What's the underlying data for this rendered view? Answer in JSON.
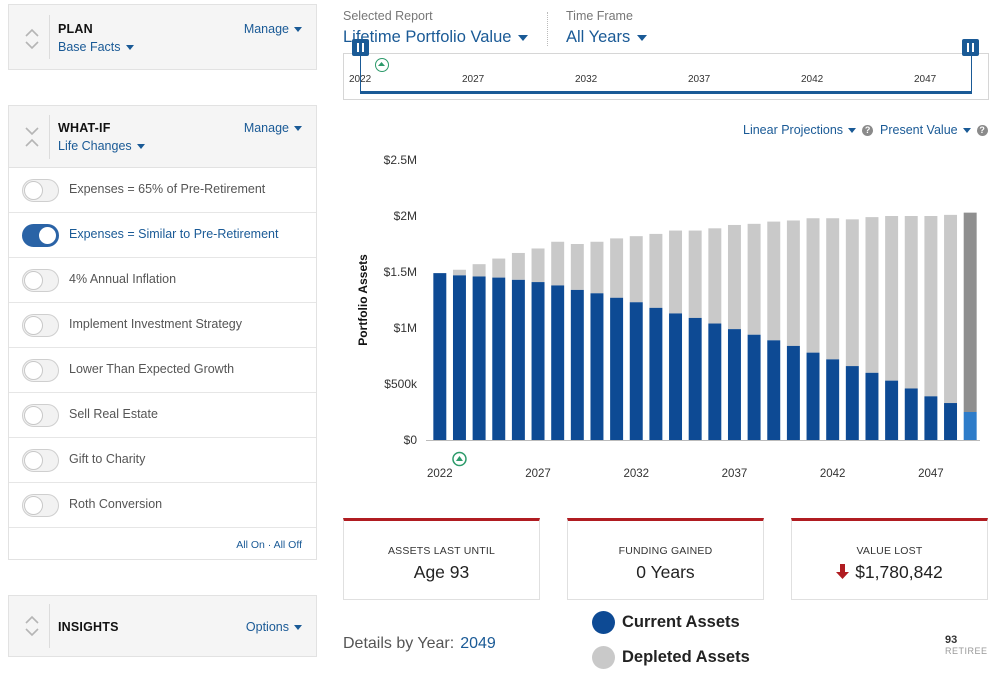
{
  "plan_panel": {
    "title": "PLAN",
    "subtitle": "Base Facts",
    "action": "Manage"
  },
  "whatif_panel": {
    "title": "WHAT-IF",
    "subtitle": "Life Changes",
    "action": "Manage",
    "toggles": [
      {
        "label": "Expenses = 65% of Pre-Retirement",
        "on": false
      },
      {
        "label": "Expenses = Similar to Pre-Retirement",
        "on": true
      },
      {
        "label": "4% Annual Inflation",
        "on": false
      },
      {
        "label": "Implement Investment Strategy",
        "on": false
      },
      {
        "label": "Lower Than Expected Growth",
        "on": false
      },
      {
        "label": "Sell Real Estate",
        "on": false
      },
      {
        "label": "Gift to Charity",
        "on": false
      },
      {
        "label": "Roth Conversion",
        "on": false
      }
    ],
    "all_on": "All On",
    "separator": "·",
    "all_off": "All Off"
  },
  "insights_panel": {
    "title": "INSIGHTS",
    "action": "Options"
  },
  "report": {
    "selected_label": "Selected Report",
    "selected_value": "Lifetime Portfolio Value",
    "timeframe_label": "Time Frame",
    "timeframe_value": "All Years"
  },
  "timeline": {
    "ticks": [
      "2022",
      "2027",
      "2032",
      "2037",
      "2042",
      "2047"
    ]
  },
  "chart_controls": {
    "projection": "Linear Projections",
    "value_mode": "Present Value",
    "help": "?"
  },
  "chart_data": {
    "type": "bar",
    "ylabel": "Portfolio Assets",
    "xlabel": "",
    "ylim": [
      0,
      2500000
    ],
    "y_ticks": [
      "$0",
      "$500k",
      "$1M",
      "$1.5M",
      "$2M",
      "$2.5M"
    ],
    "x_tick_labels": [
      "2022",
      "2027",
      "2032",
      "2037",
      "2042",
      "2047"
    ],
    "categories": [
      2022,
      2023,
      2024,
      2025,
      2026,
      2027,
      2028,
      2029,
      2030,
      2031,
      2032,
      2033,
      2034,
      2035,
      2036,
      2037,
      2038,
      2039,
      2040,
      2041,
      2042,
      2043,
      2044,
      2045,
      2046,
      2047,
      2048,
      2049
    ],
    "series": [
      {
        "name": "Current Assets",
        "color": "#0d4a94",
        "values": [
          1490000,
          1470000,
          1460000,
          1450000,
          1430000,
          1410000,
          1380000,
          1340000,
          1310000,
          1270000,
          1230000,
          1180000,
          1130000,
          1090000,
          1040000,
          990000,
          940000,
          890000,
          840000,
          780000,
          720000,
          660000,
          600000,
          530000,
          460000,
          390000,
          330000,
          250000
        ]
      },
      {
        "name": "Depleted Assets",
        "color": "#c9c9c9",
        "values": [
          0,
          50000,
          110000,
          170000,
          240000,
          300000,
          390000,
          410000,
          460000,
          530000,
          590000,
          660000,
          740000,
          780000,
          850000,
          930000,
          990000,
          1060000,
          1120000,
          1200000,
          1260000,
          1310000,
          1390000,
          1470000,
          1540000,
          1610000,
          1680000,
          1780000
        ]
      }
    ],
    "highlight_last": {
      "current_color": "#2e7cc9",
      "depleted_color": "#8f8f8f"
    }
  },
  "cards": [
    {
      "label": "ASSETS LAST UNTIL",
      "value": "Age 93",
      "down": false
    },
    {
      "label": "FUNDING GAINED",
      "value": "0 Years",
      "down": false
    },
    {
      "label": "VALUE LOST",
      "value": "$1,780,842",
      "down": true
    }
  ],
  "details": {
    "label": "Details by Year:",
    "year": "2049"
  },
  "legend": [
    {
      "label": "Current Assets",
      "color": "#0d4a94"
    },
    {
      "label": "Depleted Assets",
      "color": "#c9c9c9"
    }
  ],
  "badge": {
    "number": "93",
    "label": "RETIREE"
  }
}
